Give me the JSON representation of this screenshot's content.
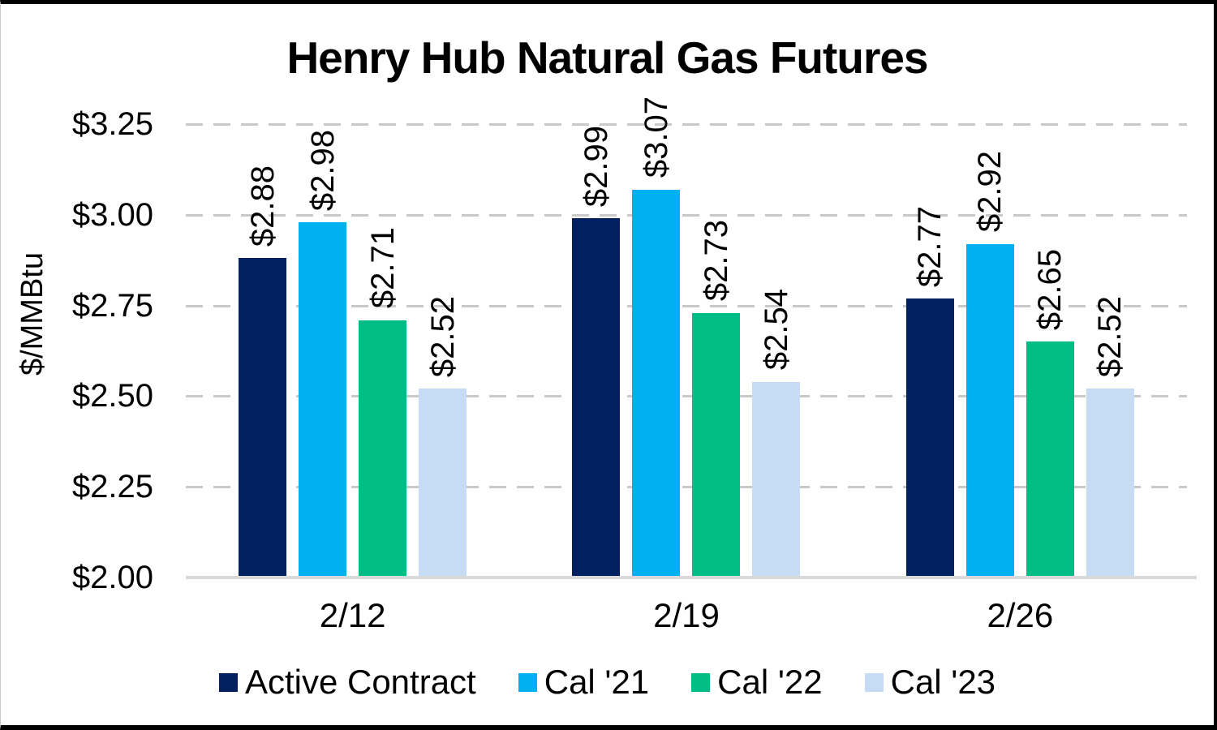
{
  "page": {
    "background": "#ffffff",
    "border_color": "#000000"
  },
  "chart_data": {
    "type": "bar",
    "title": "Henry Hub Natural Gas Futures",
    "ylabel": "$/MMBtu",
    "xlabel": "",
    "categories": [
      "2/12",
      "2/19",
      "2/26"
    ],
    "series": [
      {
        "name": "Active Contract",
        "color": "#002060",
        "values": [
          2.88,
          2.99,
          2.77
        ],
        "labels": [
          "$2.88",
          "$2.99",
          "$2.77"
        ]
      },
      {
        "name": "Cal '21",
        "color": "#00B0F0",
        "values": [
          2.98,
          3.07,
          2.92
        ],
        "labels": [
          "$2.98",
          "$3.07",
          "$2.92"
        ]
      },
      {
        "name": "Cal '22",
        "color": "#00BD86",
        "values": [
          2.71,
          2.73,
          2.65
        ],
        "labels": [
          "$2.71",
          "$2.73",
          "$2.65"
        ]
      },
      {
        "name": "Cal '23",
        "color": "#C5DCF4",
        "values": [
          2.52,
          2.54,
          2.52
        ],
        "labels": [
          "$2.52",
          "$2.54",
          "$2.52"
        ]
      }
    ],
    "y_ticks": [
      "$3.25",
      "$3.00",
      "$2.75",
      "$2.50",
      "$2.25",
      "$2.00"
    ],
    "y_tick_values": [
      3.25,
      3.0,
      2.75,
      2.5,
      2.25,
      2.0
    ],
    "ylim": [
      2.0,
      3.25
    ],
    "grid": "horizontal-dashed",
    "gridline_color": "#C9C9C9",
    "axisline_color": "#D9D9D9",
    "legend_position": "bottom",
    "data_label_rotation": "vertical"
  }
}
